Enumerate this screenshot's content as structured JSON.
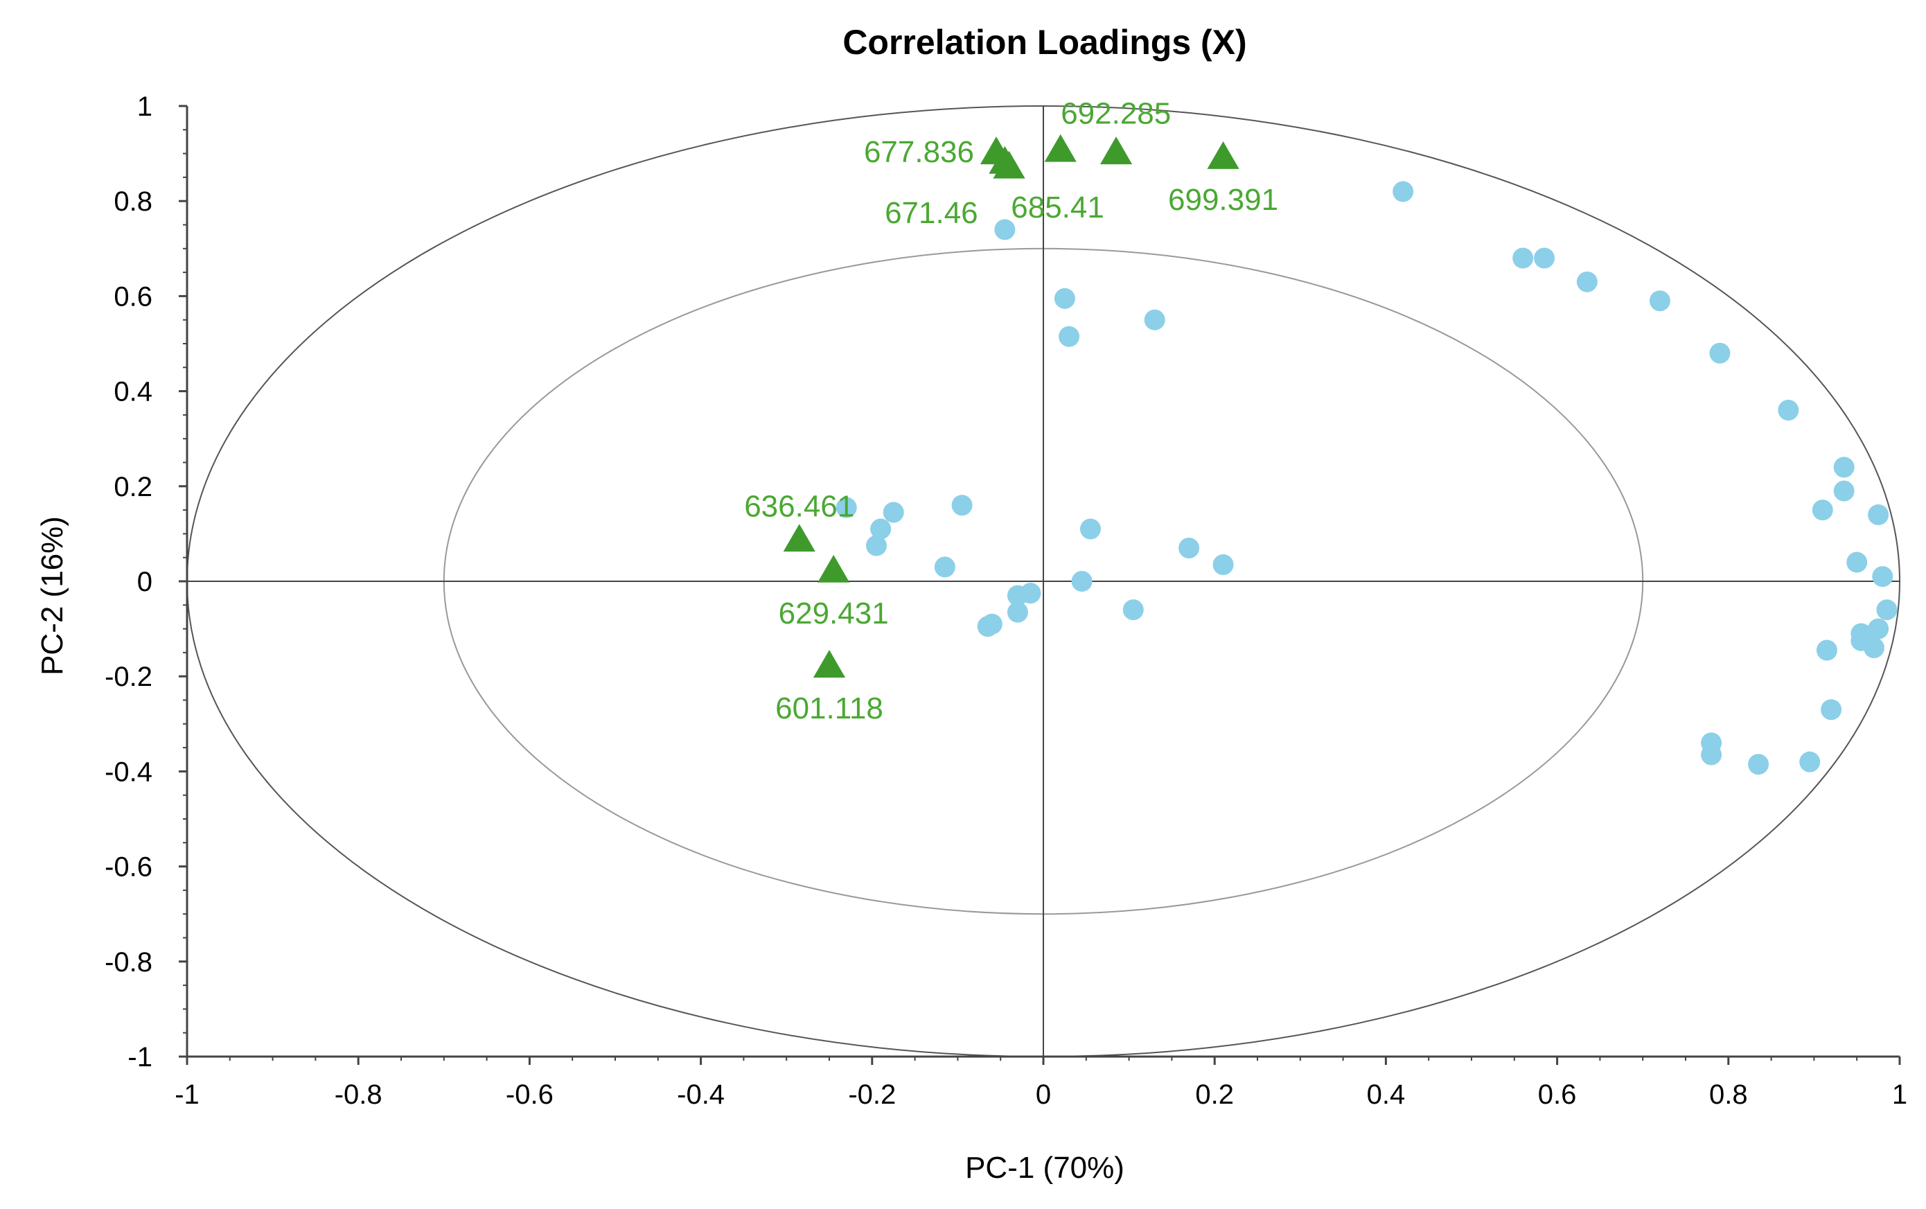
{
  "chart_data": {
    "type": "scatter",
    "title": "Correlation Loadings (X)",
    "xlabel": "PC-1 (70%)",
    "ylabel": "PC-2 (16%)",
    "xlim": [
      -1,
      1
    ],
    "ylim": [
      -1,
      1
    ],
    "xticks": [
      "-1",
      "-0.8",
      "-0.6",
      "-0.4",
      "-0.2",
      "0",
      "0.2",
      "0.4",
      "0.6",
      "0.8",
      "1"
    ],
    "yticks": [
      "1",
      "0.8",
      "0.6",
      "0.4",
      "0.2",
      "0",
      "-0.2",
      "-0.4",
      "-0.6",
      "-0.8",
      "-1"
    ],
    "grid": false,
    "circles": [
      {
        "name": "outer",
        "radius": 1.0
      },
      {
        "name": "inner",
        "radius": 0.7
      }
    ],
    "colors": {
      "points": "#8ccfe8",
      "markers": "#3f9a2c",
      "labels": "#4aa832",
      "axis": "#444444",
      "circle_outer": "#555555",
      "circle_inner": "#999999"
    },
    "series": [
      {
        "name": "variables",
        "marker": "circle",
        "points": [
          [
            0.42,
            0.82
          ],
          [
            -0.045,
            0.74
          ],
          [
            0.56,
            0.68
          ],
          [
            0.585,
            0.68
          ],
          [
            0.635,
            0.63
          ],
          [
            0.72,
            0.59
          ],
          [
            0.79,
            0.48
          ],
          [
            0.87,
            0.36
          ],
          [
            0.935,
            0.24
          ],
          [
            0.935,
            0.19
          ],
          [
            0.91,
            0.15
          ],
          [
            0.975,
            0.14
          ],
          [
            0.95,
            0.04
          ],
          [
            0.98,
            0.01
          ],
          [
            0.985,
            -0.06
          ],
          [
            0.975,
            -0.1
          ],
          [
            0.965,
            -0.115
          ],
          [
            0.955,
            -0.11
          ],
          [
            0.955,
            -0.125
          ],
          [
            0.97,
            -0.14
          ],
          [
            0.915,
            -0.145
          ],
          [
            0.92,
            -0.27
          ],
          [
            0.78,
            -0.34
          ],
          [
            0.78,
            -0.365
          ],
          [
            0.835,
            -0.385
          ],
          [
            0.895,
            -0.38
          ],
          [
            0.025,
            0.595
          ],
          [
            0.03,
            0.515
          ],
          [
            0.13,
            0.55
          ],
          [
            -0.23,
            0.155
          ],
          [
            -0.175,
            0.145
          ],
          [
            -0.095,
            0.16
          ],
          [
            -0.19,
            0.11
          ],
          [
            -0.195,
            0.075
          ],
          [
            -0.115,
            0.03
          ],
          [
            0.055,
            0.11
          ],
          [
            0.17,
            0.07
          ],
          [
            0.21,
            0.035
          ],
          [
            0.045,
            0.0
          ],
          [
            -0.015,
            -0.025
          ],
          [
            -0.03,
            -0.03
          ],
          [
            -0.03,
            -0.065
          ],
          [
            -0.06,
            -0.09
          ],
          [
            -0.065,
            -0.095
          ],
          [
            0.105,
            -0.06
          ]
        ]
      },
      {
        "name": "annotated",
        "marker": "triangle",
        "points": [
          {
            "x": -0.055,
            "y": 0.905,
            "label": "677.836",
            "anchor": "end"
          },
          {
            "x": -0.045,
            "y": 0.885,
            "label": "671.46",
            "anchor": "below-left"
          },
          {
            "x": -0.04,
            "y": 0.875,
            "label": "685.41",
            "anchor": "below"
          },
          {
            "x": 0.02,
            "y": 0.91,
            "label": "692.285",
            "anchor": "above"
          },
          {
            "x": 0.085,
            "y": 0.905,
            "label": "",
            "anchor": "none"
          },
          {
            "x": 0.21,
            "y": 0.895,
            "label": "699.391",
            "anchor": "below"
          },
          {
            "x": -0.285,
            "y": 0.09,
            "label": "636.461",
            "anchor": "above"
          },
          {
            "x": -0.245,
            "y": 0.025,
            "label": "629.431",
            "anchor": "below"
          },
          {
            "x": -0.25,
            "y": -0.175,
            "label": "601.118",
            "anchor": "below"
          }
        ]
      }
    ]
  }
}
